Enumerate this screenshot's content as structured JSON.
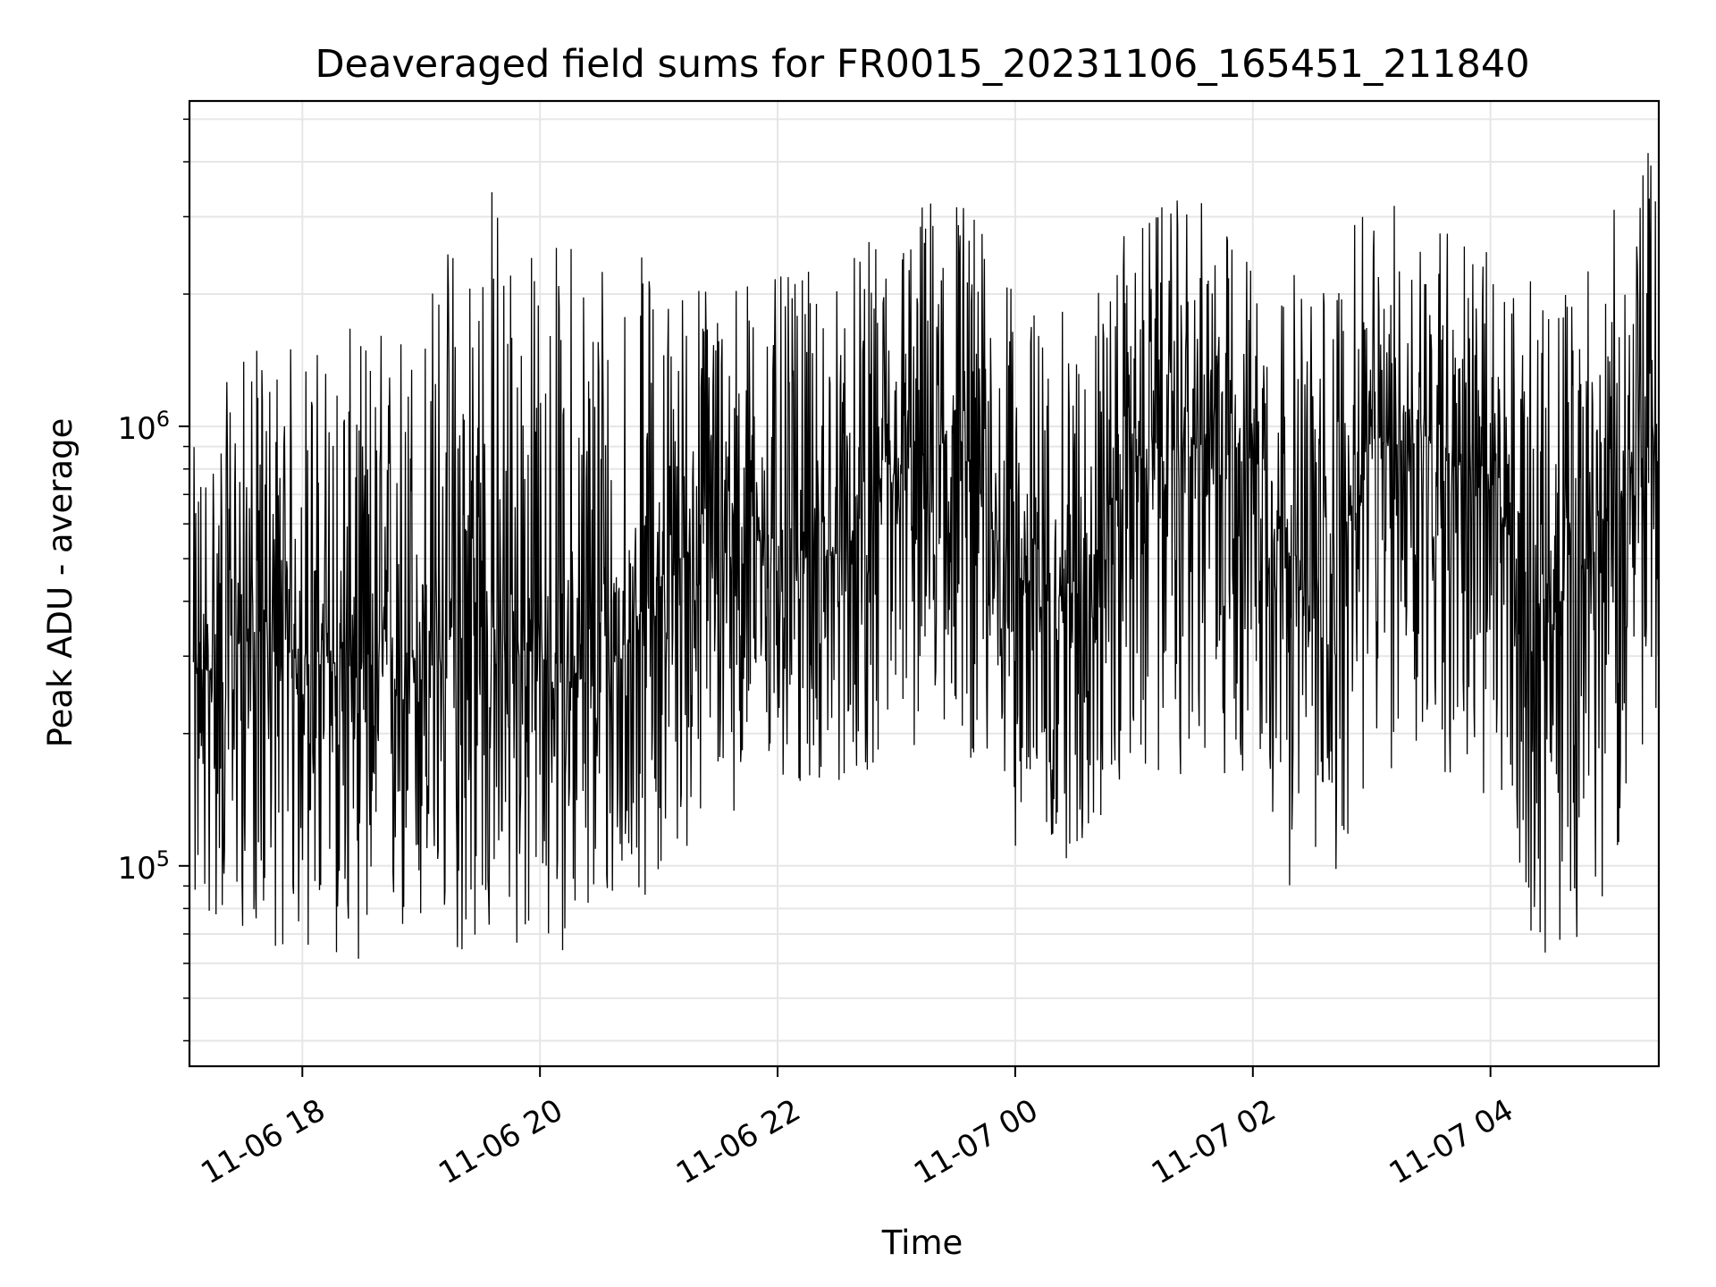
{
  "chart_data": {
    "type": "line",
    "title": "Deaveraged field sums for FR0015_20231106_165451_211840",
    "xlabel": "Time",
    "ylabel": "Peak ADU - average",
    "x_range": [
      "2023-11-06 17:03",
      "2023-11-07 05:25"
    ],
    "y_scale": "log",
    "ylim": [
      35000,
      5500000
    ],
    "grid": true,
    "x_ticks": [
      {
        "time": "2023-11-06 18:00",
        "label": "11-06 18"
      },
      {
        "time": "2023-11-06 20:00",
        "label": "11-06 20"
      },
      {
        "time": "2023-11-06 22:00",
        "label": "11-06 22"
      },
      {
        "time": "2023-11-07 00:00",
        "label": "11-07 00"
      },
      {
        "time": "2023-11-07 02:00",
        "label": "11-07 02"
      },
      {
        "time": "2023-11-07 04:00",
        "label": "11-07 04"
      }
    ],
    "y_ticks": [
      {
        "value": 100000,
        "base": "10",
        "exp": "5"
      },
      {
        "value": 1000000,
        "base": "10",
        "exp": "6"
      }
    ],
    "series": [
      {
        "color": "#000000",
        "x": [
          "2023-11-06 17:05",
          "2023-11-06 17:30",
          "2023-11-06 18:00",
          "2023-11-06 18:30",
          "2023-11-06 19:00",
          "2023-11-06 19:30",
          "2023-11-06 20:00",
          "2023-11-06 20:30",
          "2023-11-06 21:00",
          "2023-11-06 21:30",
          "2023-11-06 22:00",
          "2023-11-06 22:30",
          "2023-11-06 23:00",
          "2023-11-06 23:30",
          "2023-11-07 00:00",
          "2023-11-07 00:30",
          "2023-11-07 01:00",
          "2023-11-07 01:30",
          "2023-11-07 02:00",
          "2023-11-07 02:30",
          "2023-11-07 03:00",
          "2023-11-07 03:30",
          "2023-11-07 04:00",
          "2023-11-07 04:30",
          "2023-11-07 05:00",
          "2023-11-07 05:20"
        ],
        "values": [
          250000,
          350000,
          300000,
          280000,
          300000,
          350000,
          300000,
          250000,
          450000,
          600000,
          550000,
          500000,
          750000,
          950000,
          450000,
          400000,
          850000,
          900000,
          950000,
          350000,
          900000,
          950000,
          700000,
          350000,
          600000,
          1000000
        ],
        "spread_low": [
          70000,
          70000,
          60000,
          60000,
          60000,
          60000,
          60000,
          70000,
          90000,
          130000,
          140000,
          150000,
          170000,
          200000,
          110000,
          100000,
          150000,
          160000,
          150000,
          65000,
          150000,
          170000,
          120000,
          55000,
          90000,
          200000
        ],
        "spread_high": [
          900000,
          1500000,
          1600000,
          1700000,
          2000000,
          4500000,
          2500000,
          3500000,
          2200000,
          2400000,
          2200000,
          2300000,
          3000000,
          4000000,
          2000000,
          1800000,
          3000000,
          3400000,
          2500000,
          2200000,
          3200000,
          3400000,
          2500000,
          2000000,
          3000000,
          4300000
        ]
      }
    ]
  }
}
